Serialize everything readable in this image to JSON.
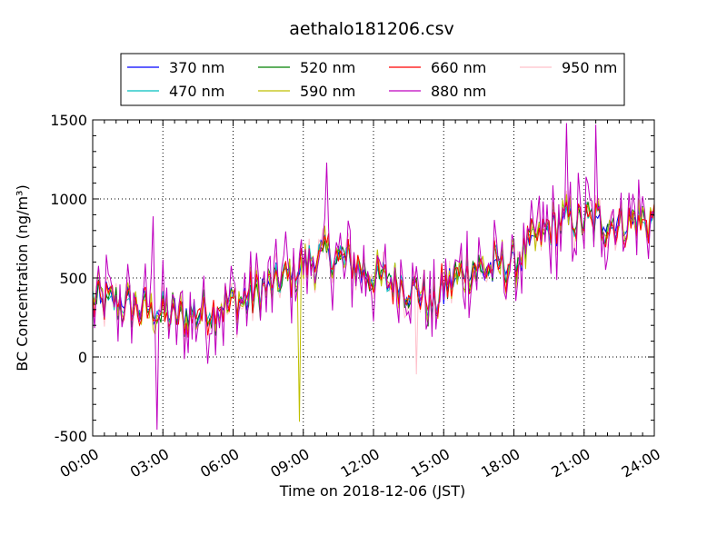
{
  "chart_data": {
    "type": "line",
    "title": "aethalo181206.csv",
    "xlabel": "Time on 2018-12-06 (JST)",
    "ylabel": "BC Concentration (ng/m³)",
    "x_range_hours": [
      0,
      24
    ],
    "xticks": [
      {
        "h": 0,
        "label": "00:00"
      },
      {
        "h": 3,
        "label": "03:00"
      },
      {
        "h": 6,
        "label": "06:00"
      },
      {
        "h": 9,
        "label": "09:00"
      },
      {
        "h": 12,
        "label": "12:00"
      },
      {
        "h": 15,
        "label": "15:00"
      },
      {
        "h": 18,
        "label": "18:00"
      },
      {
        "h": 21,
        "label": "21:00"
      },
      {
        "h": 24,
        "label": "24:00"
      }
    ],
    "ylim": [
      -500,
      1500
    ],
    "yticks": [
      -500,
      0,
      500,
      1000,
      1500
    ],
    "grid": true,
    "legend": "top, outside the plot, 4 columns",
    "sample_interval_minutes": 5,
    "series": [
      {
        "name": "370 nm",
        "color": "#0000ff"
      },
      {
        "name": "470 nm",
        "color": "#00bfbf"
      },
      {
        "name": "520 nm",
        "color": "#008000"
      },
      {
        "name": "590 nm",
        "color": "#bfbf00"
      },
      {
        "name": "660 nm",
        "color": "#ff0000"
      },
      {
        "name": "880 nm",
        "color": "#bf00bf"
      },
      {
        "name": "950 nm",
        "color": "#ffc0cb"
      }
    ],
    "baseline_trend": [
      [
        0.0,
        360
      ],
      [
        1.0,
        340
      ],
      [
        2.0,
        310
      ],
      [
        3.0,
        270
      ],
      [
        4.0,
        250
      ],
      [
        5.0,
        300
      ],
      [
        6.0,
        340
      ],
      [
        7.0,
        400
      ],
      [
        8.0,
        480
      ],
      [
        9.0,
        580
      ],
      [
        10.0,
        650
      ],
      [
        11.0,
        600
      ],
      [
        12.0,
        500
      ],
      [
        13.0,
        470
      ],
      [
        14.0,
        420
      ],
      [
        14.5,
        300
      ],
      [
        15.0,
        430
      ],
      [
        16.0,
        560
      ],
      [
        17.0,
        560
      ],
      [
        18.0,
        600
      ],
      [
        19.0,
        750
      ],
      [
        20.0,
        850
      ],
      [
        21.0,
        860
      ],
      [
        22.0,
        850
      ],
      [
        23.0,
        860
      ],
      [
        24.0,
        870
      ]
    ],
    "annotated_extremes": [
      {
        "series": "590 nm",
        "h": 8.8,
        "y": -410
      },
      {
        "series": "880 nm",
        "h": 2.75,
        "y": -460
      },
      {
        "series": "880 nm",
        "h": 2.6,
        "y": 890
      },
      {
        "series": "880 nm",
        "h": 20.25,
        "y": 1480
      },
      {
        "series": "880 nm",
        "h": 21.5,
        "y": 1470
      },
      {
        "series": "880 nm",
        "h": 10.0,
        "y": 1230
      },
      {
        "series": "950 nm",
        "h": 13.8,
        "y": -110
      }
    ]
  }
}
